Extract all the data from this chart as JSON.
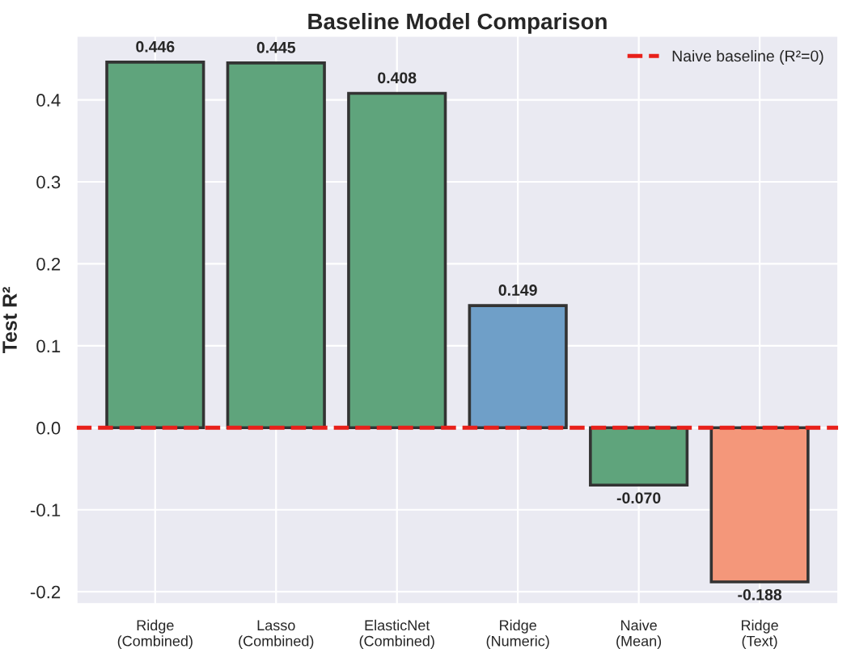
{
  "chart_data": {
    "type": "bar",
    "title": "Baseline Model Comparison",
    "ylabel": "Test R²",
    "categories": [
      "Ridge\n(Combined)",
      "Lasso\n(Combined)",
      "ElasticNet\n(Combined)",
      "Ridge\n(Numeric)",
      "Naive\n(Mean)",
      "Ridge\n(Text)"
    ],
    "values": [
      0.446,
      0.445,
      0.408,
      0.149,
      -0.07,
      -0.188
    ],
    "colors": [
      "#5fa47c",
      "#5fa47c",
      "#5fa47c",
      "#6f9fc8",
      "#5fa47c",
      "#f4977a"
    ],
    "value_labels": [
      "0.446",
      "0.445",
      "0.408",
      "0.149",
      "-0.070",
      "-0.188"
    ],
    "ylim": [
      -0.215,
      0.478
    ],
    "yticks": [
      {
        "value": -0.2,
        "label": "-0.2"
      },
      {
        "value": -0.1,
        "label": "-0.1"
      },
      {
        "value": 0,
        "label": "0.0"
      },
      {
        "value": 0.1,
        "label": "0.1"
      },
      {
        "value": 0.2,
        "label": "0.2"
      },
      {
        "value": 0.3,
        "label": "0.3"
      },
      {
        "value": 0.4,
        "label": "0.4"
      }
    ],
    "ref_lines": [
      {
        "axis": "y",
        "value": 0,
        "label": "Naive baseline (R²=0)",
        "color": "#e8201a",
        "line_style": "dashed"
      }
    ],
    "grid": true,
    "legend": "top right"
  }
}
